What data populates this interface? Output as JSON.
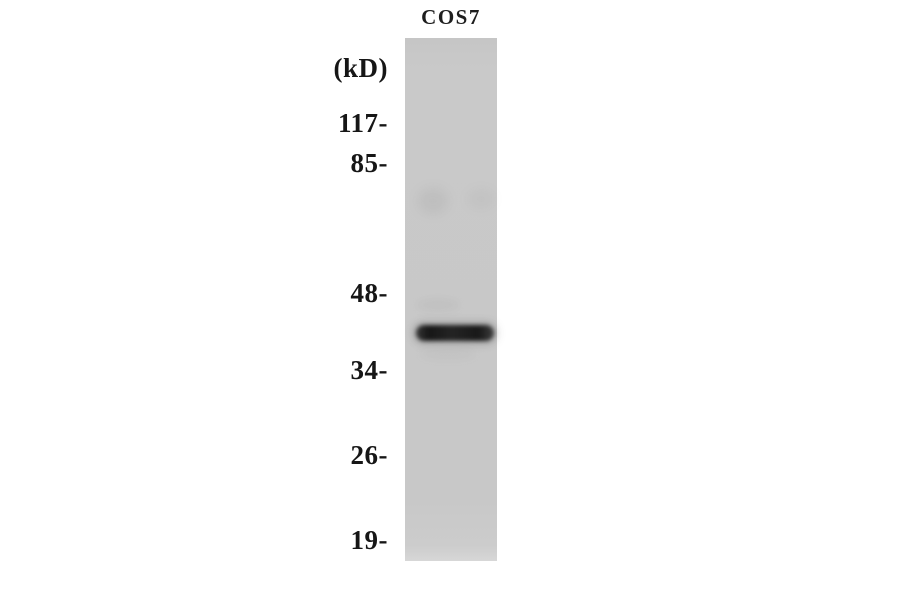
{
  "figure": {
    "type": "western-blot",
    "sample_label": "COS7",
    "unit_label": "(kD)",
    "markers": [
      "117-",
      "85-",
      "48-",
      "34-",
      "26-",
      "19-"
    ],
    "band": {
      "lane": "COS7",
      "located_between_kd": [
        48,
        34
      ],
      "count": 1
    },
    "colors": {
      "background": "#ffffff",
      "lane": "#c8c8c8",
      "band": "#1b1b1b",
      "text": "#161616"
    }
  }
}
